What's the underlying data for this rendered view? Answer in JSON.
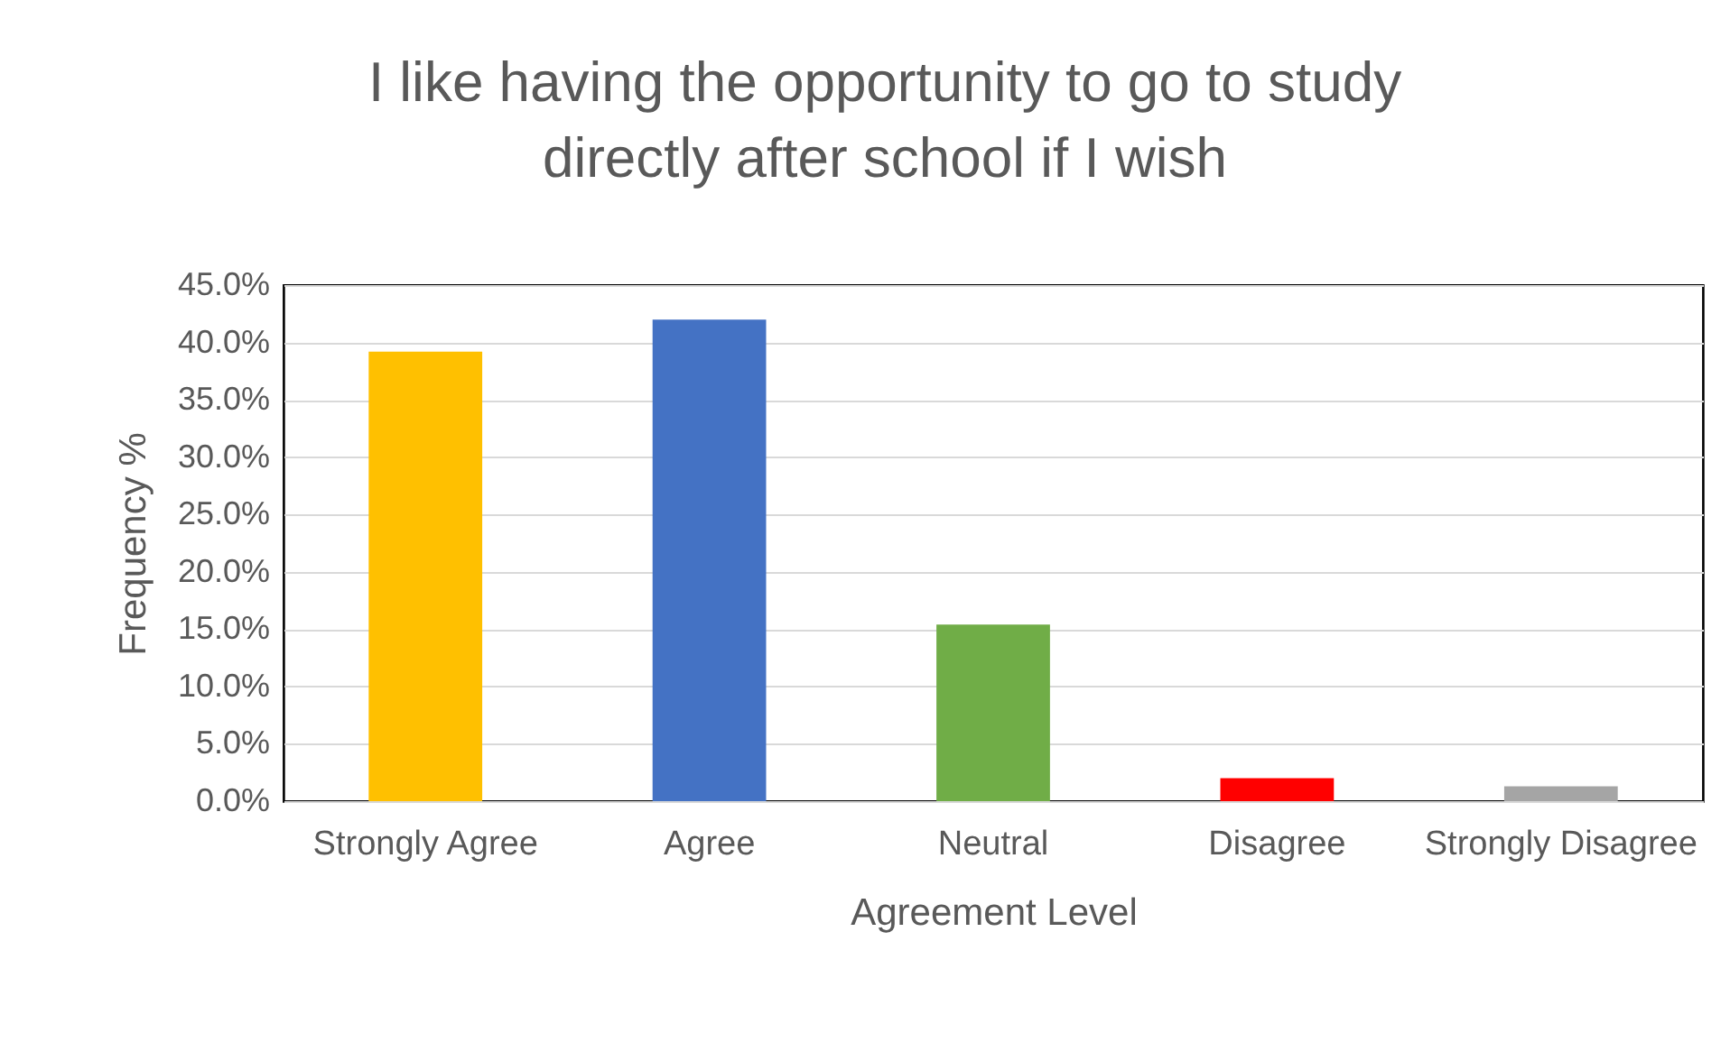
{
  "chart_data": {
    "type": "bar",
    "title": "I like having the opportunity to go to study directly after school if I wish",
    "xlabel": "Agreement Level",
    "ylabel": "Frequency %",
    "categories": [
      "Strongly Agree",
      "Agree",
      "Neutral",
      "Disagree",
      "Strongly Disagree"
    ],
    "values": [
      39.2,
      42.0,
      15.4,
      2.0,
      1.3
    ],
    "colors": [
      "#ffc000",
      "#4472c4",
      "#70ad47",
      "#ff0000",
      "#a5a5a5"
    ],
    "ylim": [
      0,
      45
    ],
    "yticks": [
      {
        "value": 0,
        "label": "0.0%"
      },
      {
        "value": 5,
        "label": "5.0%"
      },
      {
        "value": 10,
        "label": "10.0%"
      },
      {
        "value": 15,
        "label": "15.0%"
      },
      {
        "value": 20,
        "label": "20.0%"
      },
      {
        "value": 25,
        "label": "25.0%"
      },
      {
        "value": 30,
        "label": "30.0%"
      },
      {
        "value": 35,
        "label": "35.0%"
      },
      {
        "value": 40,
        "label": "40.0%"
      },
      {
        "value": 45,
        "label": "45.0%"
      }
    ],
    "grid": "y",
    "legend": false
  }
}
